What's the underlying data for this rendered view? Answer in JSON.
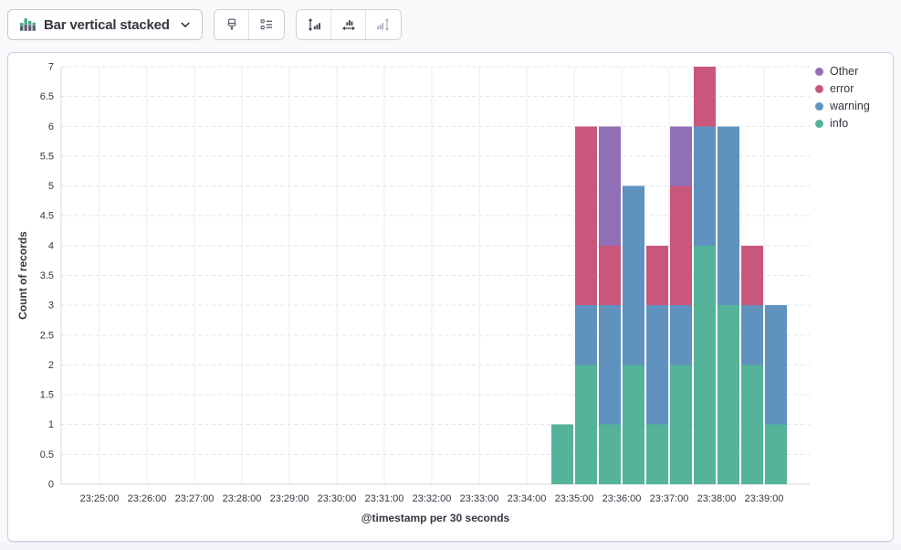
{
  "toolbar": {
    "chart_type_label": "Bar vertical stacked",
    "chart_type_icon": "bar-vertical-stacked-icon",
    "button_groups": [
      {
        "buttons": [
          {
            "icon": "brush-icon"
          },
          {
            "icon": "legend-list-icon"
          }
        ]
      },
      {
        "buttons": [
          {
            "icon": "axis-left-icon"
          },
          {
            "icon": "axis-bottom-icon"
          },
          {
            "icon": "axis-right-icon",
            "disabled": true
          }
        ]
      }
    ]
  },
  "legend": {
    "position": "right",
    "items": [
      {
        "label": "Other",
        "color": "#9170B8"
      },
      {
        "label": "error",
        "color": "#C9577C"
      },
      {
        "label": "warning",
        "color": "#6092C0"
      },
      {
        "label": "info",
        "color": "#54B399"
      }
    ]
  },
  "chart_data": {
    "type": "bar",
    "stacked": true,
    "orientation": "vertical",
    "title": "",
    "xlabel": "@timestamp per 30 seconds",
    "ylabel": "Count of records",
    "ylim": [
      0,
      7
    ],
    "y_tick_step": 0.5,
    "x_tick_labels": [
      "23:25:00",
      "23:26:00",
      "23:27:00",
      "23:28:00",
      "23:29:00",
      "23:30:00",
      "23:31:00",
      "23:32:00",
      "23:33:00",
      "23:34:00",
      "23:35:00",
      "23:36:00",
      "23:37:00",
      "23:38:00",
      "23:39:00"
    ],
    "bucket_seconds": 30,
    "categories": [
      "23:34:30",
      "23:35:00",
      "23:35:30",
      "23:36:00",
      "23:36:30",
      "23:37:00",
      "23:37:30",
      "23:38:00",
      "23:38:30",
      "23:39:00"
    ],
    "series": [
      {
        "name": "info",
        "color": "#54B399",
        "values": [
          1,
          2,
          1,
          2,
          1,
          2,
          4,
          3,
          2,
          1
        ]
      },
      {
        "name": "warning",
        "color": "#6092C0",
        "values": [
          0,
          1,
          2,
          3,
          2,
          1,
          2,
          3,
          1,
          2
        ]
      },
      {
        "name": "error",
        "color": "#C9577C",
        "values": [
          0,
          3,
          1,
          0,
          1,
          2,
          1,
          0,
          1,
          0
        ]
      },
      {
        "name": "Other",
        "color": "#9170B8",
        "values": [
          0,
          0,
          2,
          0,
          0,
          1,
          0,
          0,
          0,
          0
        ]
      }
    ],
    "totals": [
      1,
      6,
      6,
      5,
      4,
      6,
      7,
      6,
      4,
      3
    ],
    "grid": {
      "horizontal": "dashed",
      "vertical": "solid"
    },
    "legend_position": "right"
  }
}
